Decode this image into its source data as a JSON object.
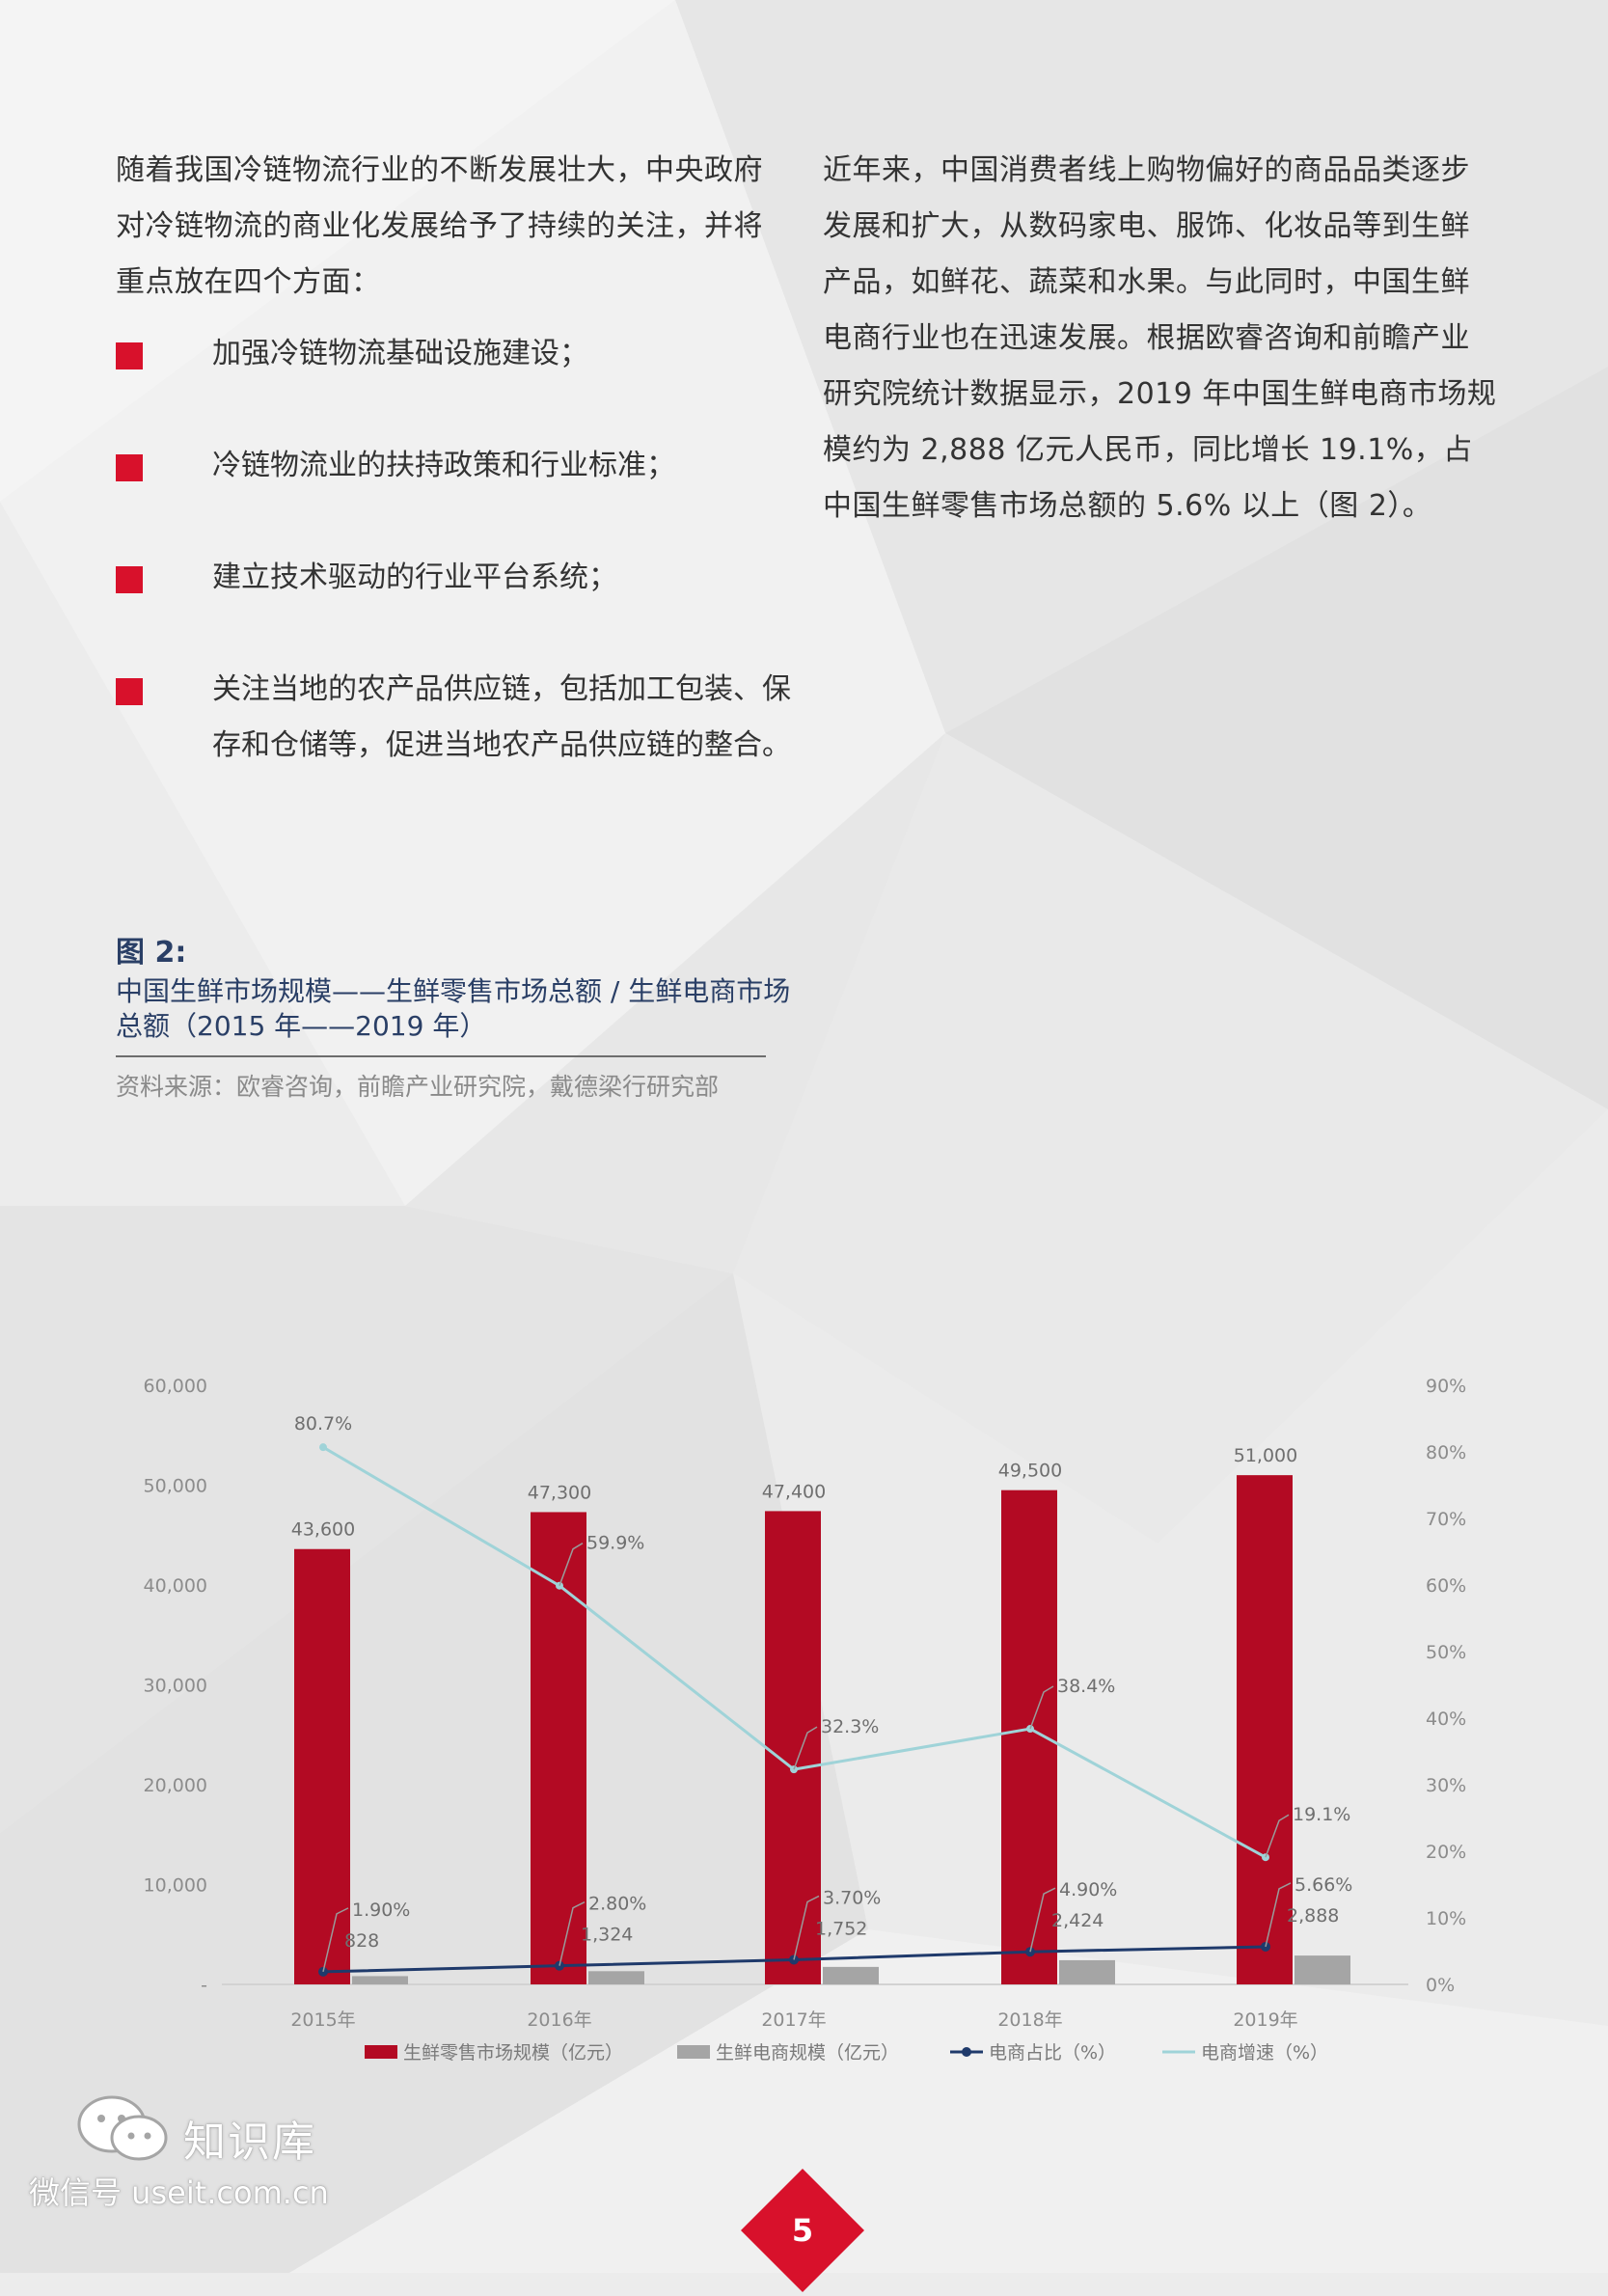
{
  "left_column": {
    "intro": "随着我国冷链物流行业的不断发展壮大，中央政府对冷链物流的商业化发展给予了持续的关注，并将重点放在四个方面：",
    "bullets": [
      "加强冷链物流基础设施建设；",
      "冷链物流业的扶持政策和行业标准；",
      "建立技术驱动的行业平台系统；",
      "关注当地的农产品供应链，包括加工包装、保存和仓储等，促进当地农产品供应链的整合。"
    ]
  },
  "right_column": {
    "paragraph": "近年来，中国消费者线上购物偏好的商品品类逐步发展和扩大，从数码家电、服饰、化妆品等到生鲜产品，如鲜花、蔬菜和水果。与此同时，中国生鲜电商行业也在迅速发展。根据欧睿咨询和前瞻产业研究院统计数据显示，2019 年中国生鲜电商市场规模约为 2,888 亿元人民币，同比增长 19.1%，占中国生鲜零售市场总额的 5.6% 以上（图 2）。"
  },
  "figure": {
    "label": "图 2:",
    "title": "中国生鲜市场规模——生鲜零售市场总额 / 生鲜电商市场总额（2015 年——2019 年）",
    "source": "资料来源：欧睿咨询，前瞻产业研究院，戴德梁行研究部"
  },
  "chart_data": {
    "type": "bar",
    "categories": [
      "2015年",
      "2016年",
      "2017年",
      "2018年",
      "2019年"
    ],
    "series": [
      {
        "name": "生鲜零售市场规模（亿元）",
        "type": "bar",
        "axis": "left",
        "values": [
          43600,
          47300,
          47400,
          49500,
          51000
        ],
        "labels": [
          "43,600",
          "47,300",
          "47,400",
          "49,500",
          "51,000"
        ],
        "color": "#b30a23"
      },
      {
        "name": "生鲜电商规模（亿元）",
        "type": "bar",
        "axis": "left",
        "values": [
          828,
          1324,
          1752,
          2424,
          2888
        ],
        "labels": [
          "828",
          "1,324",
          "1,752",
          "2,424",
          "2,888"
        ],
        "color": "#a5a5a5"
      },
      {
        "name": "电商占比（%）",
        "type": "line",
        "axis": "right",
        "values": [
          1.9,
          2.8,
          3.7,
          4.9,
          5.66
        ],
        "labels": [
          "1.90%",
          "2.80%",
          "3.70%",
          "4.90%",
          "5.66%"
        ],
        "color": "#1f3a6b"
      },
      {
        "name": "电商增速（%）",
        "type": "line",
        "axis": "right",
        "values": [
          80.7,
          59.9,
          32.3,
          38.4,
          19.1
        ],
        "labels": [
          "80.7%",
          "59.9%",
          "32.3%",
          "38.4%",
          "19.1%"
        ],
        "color": "#9fd3d8"
      }
    ],
    "y_left": {
      "ylim": [
        0,
        60000
      ],
      "ticks": [
        "-",
        "10,000",
        "20,000",
        "30,000",
        "40,000",
        "50,000",
        "60,000"
      ]
    },
    "y_right": {
      "ylim": [
        0,
        90
      ],
      "ticks": [
        "0%",
        "10%",
        "20%",
        "30%",
        "40%",
        "50%",
        "60%",
        "70%",
        "80%",
        "90%"
      ]
    },
    "grid": false,
    "legend_position": "bottom"
  },
  "watermark": {
    "name": "知识库",
    "account": "微信号 useit.com.cn"
  },
  "page_number": "5",
  "colors": {
    "accent_red": "#d8112b",
    "bar_red": "#b30a23",
    "bar_grey": "#a5a5a5",
    "line_navy": "#1f3a6b",
    "line_teal": "#9fd3d8",
    "heading_blue": "#2a3f66"
  }
}
